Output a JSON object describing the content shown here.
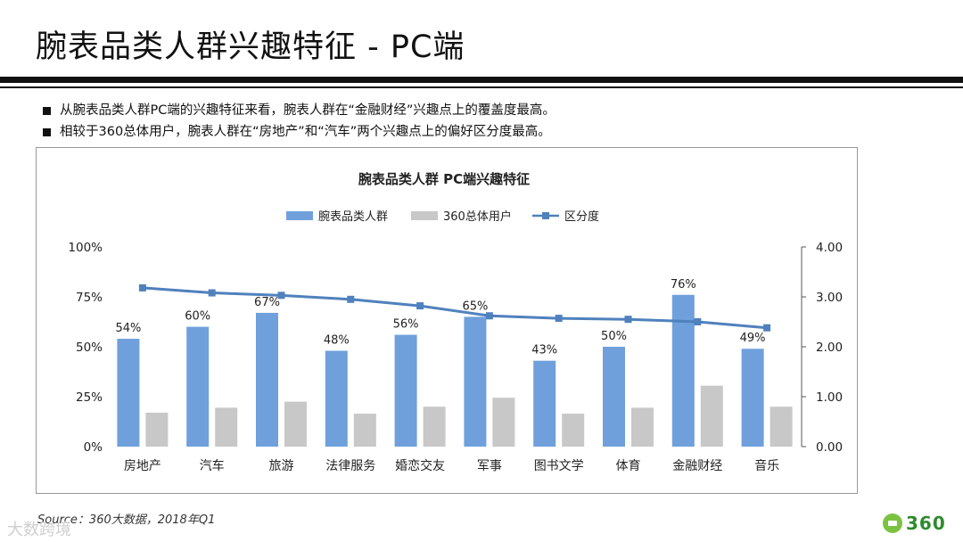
{
  "slide": {
    "title": "腕表品类人群兴趣特征 - PC端",
    "bullets": [
      "从腕表品类人群PC端的兴趣特征来看，腕表人群在“金融财经”兴趣点上的覆盖度最高。",
      "相较于360总体用户，腕表人群在“房地产”和“汽车”两个兴趣点上的偏好区分度最高。"
    ],
    "source": "Source：360大数据，2018年Q1",
    "watermark": "大数跨境",
    "logo_text": "360"
  },
  "chart_data": {
    "type": "bar",
    "title": "腕表品类人群 PC端兴趣特征",
    "categories": [
      "房地产",
      "汽车",
      "旅游",
      "法律服务",
      "婚恋交友",
      "军事",
      "图书文学",
      "体育",
      "金融财经",
      "音乐"
    ],
    "series": [
      {
        "name": "腕表品类人群",
        "kind": "bar",
        "axis": "left",
        "color": "#6fa0dc",
        "values": [
          0.54,
          0.6,
          0.67,
          0.48,
          0.56,
          0.65,
          0.43,
          0.5,
          0.76,
          0.49
        ]
      },
      {
        "name": "360总体用户",
        "kind": "bar",
        "axis": "left",
        "color": "#c8c8c8",
        "values": [
          0.17,
          0.195,
          0.225,
          0.165,
          0.2,
          0.245,
          0.165,
          0.195,
          0.305,
          0.2
        ]
      },
      {
        "name": "区分度",
        "kind": "line",
        "axis": "right",
        "color": "#4f81bd",
        "values": [
          3.18,
          3.08,
          3.03,
          2.95,
          2.82,
          2.62,
          2.57,
          2.55,
          2.5,
          2.38
        ]
      }
    ],
    "data_labels": [
      "54%",
      "60%",
      "67%",
      "48%",
      "56%",
      "65%",
      "43%",
      "50%",
      "76%",
      "49%"
    ],
    "y_left": {
      "min": 0,
      "max": 1,
      "ticks": [
        "0%",
        "25%",
        "50%",
        "75%",
        "100%"
      ]
    },
    "y_right": {
      "min": 0,
      "max": 4,
      "ticks": [
        "0.00",
        "1.00",
        "2.00",
        "3.00",
        "4.00"
      ]
    },
    "legend_position": "top"
  }
}
